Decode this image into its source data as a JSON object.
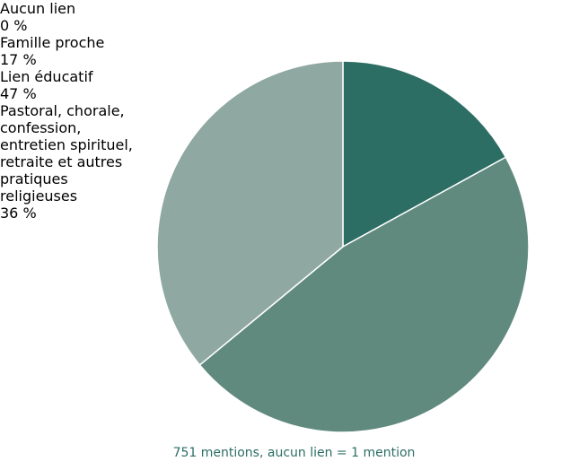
{
  "chart_data": {
    "type": "pie",
    "categories": [
      "Aucun lien",
      "Famille proche",
      "Lien éducatif",
      "Pastoral, chorale, confession, entretien spirituel, retraite et autres pratiques religieuses"
    ],
    "values": [
      0,
      17,
      47,
      36
    ],
    "value_labels": [
      "0 %",
      "17 %",
      "47 %",
      "36 %"
    ],
    "colors": [
      "#2d6e64",
      "#2d6e64",
      "#618a7f",
      "#8fa8a1"
    ],
    "note": "751 mentions, aucun lien = 1 mention"
  }
}
